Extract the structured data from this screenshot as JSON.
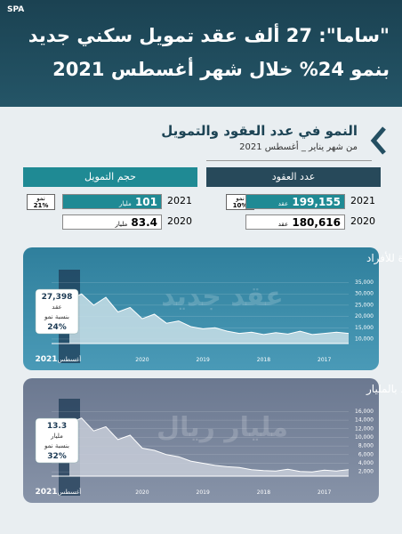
{
  "header": {
    "logo": "SPA",
    "title_line1": "\"ساما\": 27 ألف عقد تمويل سكني جديد",
    "title_line2": "بنمو 24% خلال شهر أغسطس 2021"
  },
  "section": {
    "title": "النمو في عدد العقود والتمويل",
    "subtitle": "من شهر يناير _ أغسطس 2021"
  },
  "stats": [
    {
      "title": "عدد العقود",
      "badge_label": "نمو",
      "badge_value": "10%",
      "rows": [
        {
          "year": "2021",
          "value": "199,155",
          "unit": "عقد"
        },
        {
          "year": "2020",
          "value": "180,616",
          "unit": "عقد"
        }
      ]
    },
    {
      "title": "حجم التمويل",
      "badge_label": "نمو",
      "badge_value": "21%",
      "rows": [
        {
          "year": "2021",
          "value": "101",
          "unit": "مليار"
        },
        {
          "year": "2020",
          "value": "83.4",
          "unit": "مليار"
        }
      ]
    }
  ],
  "chart_data": [
    {
      "type": "area",
      "title": "إجمالي عدد عقود التمويل السكني الجديدة للأفراد",
      "watermark": "عقد جديد",
      "color": "#c9dfe8",
      "highlight_label": "أغسطس",
      "unit_label": "عقد",
      "growth_label": "بنسبة نمو",
      "growth": "24%",
      "categories": [
        "2021",
        null,
        null,
        null,
        null,
        null,
        "2020",
        null,
        null,
        null,
        null,
        "2019",
        null,
        null,
        null,
        null,
        "2018",
        null,
        null,
        null,
        null,
        "2017",
        null,
        null
      ],
      "values": [
        27398,
        30000,
        25000,
        28500,
        22000,
        24000,
        19000,
        21000,
        17000,
        18000,
        15500,
        14500,
        15000,
        13500,
        12500,
        13000,
        12000,
        12800,
        12200,
        13500,
        12000,
        12500,
        13000,
        12500
      ],
      "value_labels": [
        "27,398",
        null,
        null,
        null,
        null,
        null,
        null,
        null,
        null,
        null,
        null,
        null,
        null,
        null,
        null,
        null,
        null,
        null,
        null,
        null,
        null,
        null,
        null,
        null
      ],
      "ylim": [
        8000,
        36000
      ],
      "yticks": [
        {
          "value": 10000,
          "label": "10,000"
        },
        {
          "value": 15000,
          "label": "15,000"
        },
        {
          "value": 20000,
          "label": "20,000"
        },
        {
          "value": 25000,
          "label": "25,000"
        },
        {
          "value": 30000,
          "label": "30,000"
        },
        {
          "value": 35000,
          "label": "35,000"
        }
      ]
    },
    {
      "type": "area",
      "title": "إجمالي  قيمة عقود  التمويل العقاري الجديدة للأفراد بالمليار",
      "watermark": "مليار ريال",
      "color": "#c7cdd8",
      "highlight_label": "أغسطس",
      "unit_label": "مليار",
      "growth_label": "بنسبة نمو",
      "growth": "32%",
      "categories": [
        "2021",
        null,
        null,
        null,
        null,
        null,
        "2020",
        null,
        null,
        null,
        null,
        "2019",
        null,
        null,
        null,
        null,
        "2018",
        null,
        null,
        null,
        null,
        "2017",
        null,
        null
      ],
      "values": [
        13300,
        14500,
        11500,
        12500,
        9500,
        10500,
        7500,
        7000,
        6000,
        5500,
        4500,
        4000,
        3500,
        3200,
        3000,
        2500,
        2300,
        2200,
        2600,
        2100,
        2000,
        2400,
        2200,
        2500
      ],
      "value_labels": [
        "13.3",
        null,
        null,
        null,
        null,
        null,
        null,
        null,
        null,
        null,
        null,
        null,
        null,
        null,
        null,
        null,
        null,
        null,
        null,
        null,
        null,
        null,
        null,
        null
      ],
      "ylim": [
        1000,
        16500
      ],
      "yticks": [
        {
          "value": 2000,
          "label": "2,000"
        },
        {
          "value": 4000,
          "label": "4,000"
        },
        {
          "value": 6000,
          "label": "6,000"
        },
        {
          "value": 8000,
          "label": "8,000"
        },
        {
          "value": 10000,
          "label": "10,000"
        },
        {
          "value": 12000,
          "label": "12,000"
        },
        {
          "value": 14000,
          "label": "14,000"
        },
        {
          "value": 16000,
          "label": "16,000"
        }
      ]
    }
  ]
}
